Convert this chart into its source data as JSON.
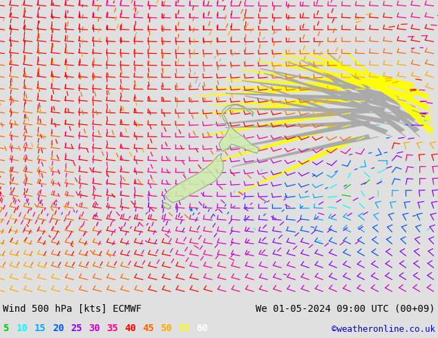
{
  "title_left": "Wind 500 hPa [kts] ECMWF",
  "title_right": "We 01-05-2024 09:00 UTC (00+09)",
  "credit": "©weatheronline.co.uk",
  "legend_values": [
    5,
    10,
    15,
    20,
    25,
    30,
    35,
    40,
    45,
    50,
    55,
    60
  ],
  "legend_colors": [
    "#00cc00",
    "#00ffff",
    "#00aaff",
    "#0055ff",
    "#8800ff",
    "#cc00cc",
    "#ff0088",
    "#ff0000",
    "#ff6600",
    "#ffaa00",
    "#ffff00",
    "#ffffff"
  ],
  "bg_color": "#e0e0e0",
  "map_bg": "#e8e8e8",
  "text_color": "#000000",
  "font_family": "monospace",
  "font_size_title": 10,
  "font_size_legend": 10,
  "font_size_credit": 9,
  "nz_land_color": "#cceeaa",
  "nz_border_color": "#888888",
  "fig_width": 6.34,
  "fig_height": 4.9,
  "dpi": 100
}
